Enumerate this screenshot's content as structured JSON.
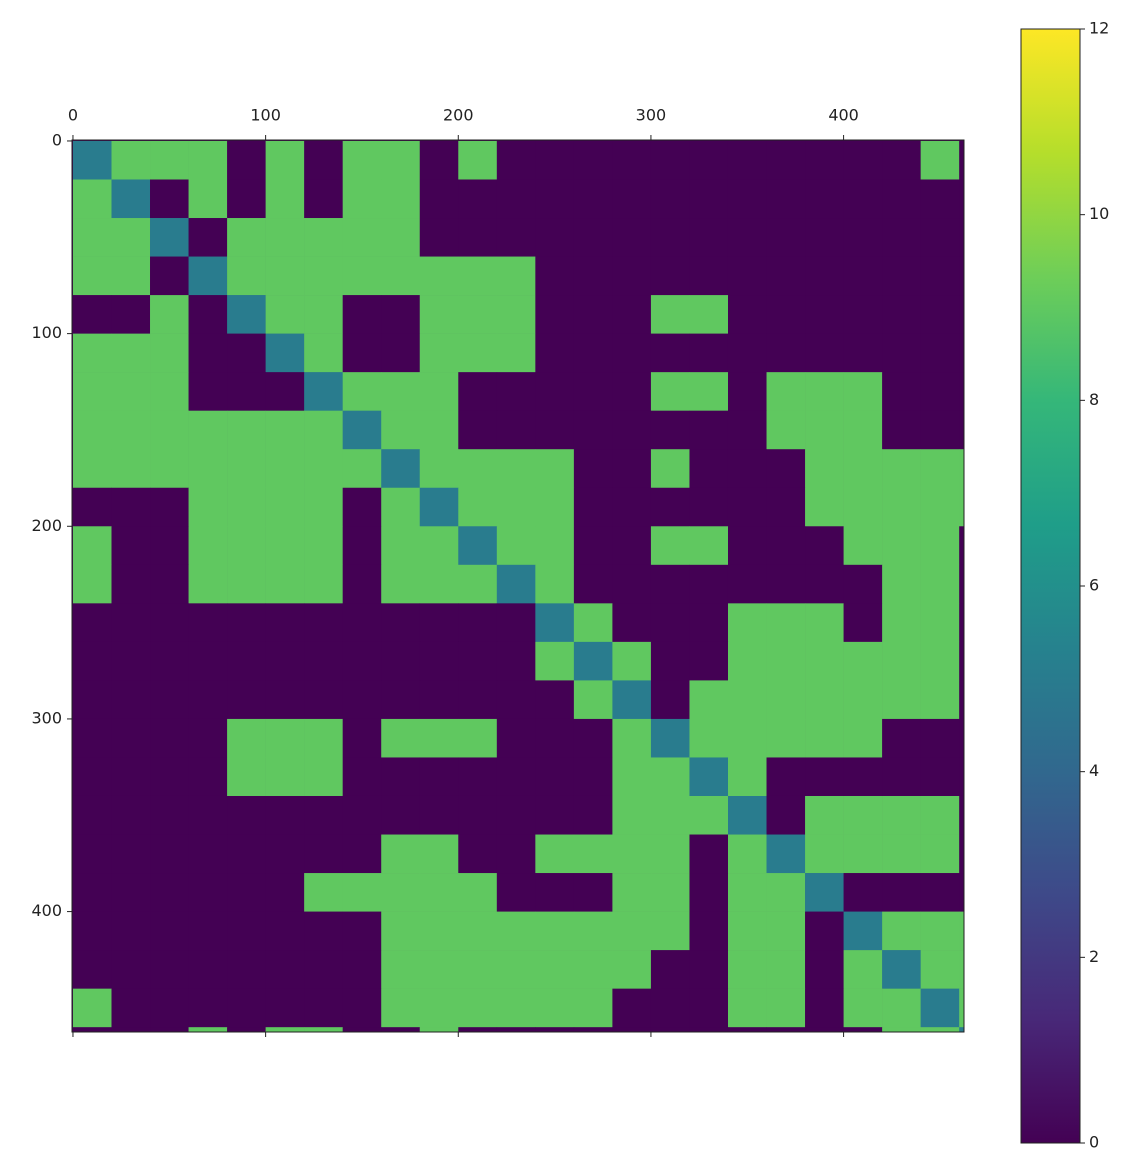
{
  "chart_data": {
    "type": "heatmap",
    "x": [
      10,
      30,
      50,
      70,
      90,
      110,
      130,
      150,
      170,
      190,
      210,
      230,
      250,
      270,
      290,
      310,
      330,
      350,
      370,
      390,
      410,
      430,
      450,
      470
    ],
    "y": [
      10,
      30,
      50,
      70,
      90,
      110,
      130,
      150,
      170,
      190,
      210,
      230,
      250,
      270,
      290,
      310,
      330,
      350,
      370,
      390,
      410,
      430,
      450,
      470
    ],
    "z": [
      [
        5,
        9,
        9,
        9,
        0,
        9,
        0,
        9,
        9,
        0,
        9,
        0,
        0,
        0,
        0,
        0,
        0,
        0,
        0,
        0,
        0,
        0,
        9,
        0
      ],
      [
        9,
        5,
        0,
        9,
        0,
        9,
        0,
        9,
        9,
        0,
        0,
        0,
        0,
        0,
        0,
        0,
        0,
        0,
        0,
        0,
        0,
        0,
        0,
        0
      ],
      [
        9,
        9,
        5,
        0,
        9,
        9,
        9,
        9,
        9,
        0,
        0,
        0,
        0,
        0,
        0,
        0,
        0,
        0,
        0,
        0,
        0,
        0,
        0,
        0
      ],
      [
        9,
        9,
        0,
        5,
        9,
        9,
        9,
        9,
        9,
        9,
        9,
        9,
        0,
        0,
        0,
        0,
        0,
        0,
        0,
        0,
        0,
        0,
        0,
        0
      ],
      [
        0,
        0,
        9,
        0,
        5,
        9,
        9,
        0,
        0,
        9,
        9,
        9,
        0,
        0,
        0,
        9,
        9,
        0,
        0,
        0,
        0,
        0,
        0,
        0
      ],
      [
        9,
        9,
        9,
        0,
        0,
        5,
        9,
        0,
        0,
        9,
        9,
        9,
        0,
        0,
        0,
        0,
        0,
        0,
        0,
        0,
        0,
        0,
        0,
        0
      ],
      [
        9,
        9,
        9,
        0,
        0,
        0,
        5,
        9,
        9,
        9,
        0,
        0,
        0,
        0,
        0,
        9,
        9,
        0,
        9,
        9,
        9,
        0,
        0,
        0
      ],
      [
        9,
        9,
        9,
        9,
        9,
        9,
        9,
        5,
        9,
        9,
        0,
        0,
        0,
        0,
        0,
        0,
        0,
        0,
        9,
        9,
        9,
        0,
        0,
        0
      ],
      [
        9,
        9,
        9,
        9,
        9,
        9,
        9,
        9,
        5,
        9,
        9,
        9,
        9,
        0,
        0,
        9,
        0,
        0,
        0,
        9,
        9,
        9,
        9,
        9
      ],
      [
        0,
        0,
        0,
        9,
        9,
        9,
        9,
        0,
        9,
        5,
        9,
        9,
        9,
        0,
        0,
        0,
        0,
        0,
        0,
        9,
        9,
        9,
        9,
        9
      ],
      [
        9,
        0,
        0,
        9,
        9,
        9,
        9,
        0,
        9,
        9,
        5,
        9,
        9,
        0,
        0,
        9,
        9,
        0,
        0,
        0,
        9,
        9,
        9,
        0
      ],
      [
        9,
        0,
        0,
        9,
        9,
        9,
        9,
        0,
        9,
        9,
        9,
        5,
        9,
        0,
        0,
        0,
        0,
        0,
        0,
        0,
        0,
        9,
        9,
        0
      ],
      [
        0,
        0,
        0,
        0,
        0,
        0,
        0,
        0,
        0,
        0,
        0,
        0,
        5,
        9,
        0,
        0,
        0,
        9,
        9,
        9,
        0,
        9,
        9,
        0
      ],
      [
        0,
        0,
        0,
        0,
        0,
        0,
        0,
        0,
        0,
        0,
        0,
        0,
        9,
        5,
        9,
        0,
        0,
        9,
        9,
        9,
        9,
        9,
        9,
        0
      ],
      [
        0,
        0,
        0,
        0,
        0,
        0,
        0,
        0,
        0,
        0,
        0,
        0,
        0,
        9,
        5,
        0,
        9,
        9,
        9,
        9,
        9,
        9,
        9,
        0
      ],
      [
        0,
        0,
        0,
        0,
        9,
        9,
        9,
        0,
        9,
        9,
        9,
        0,
        0,
        0,
        9,
        5,
        9,
        9,
        9,
        9,
        9,
        0,
        0,
        0
      ],
      [
        0,
        0,
        0,
        0,
        9,
        9,
        9,
        0,
        0,
        0,
        0,
        0,
        0,
        0,
        9,
        9,
        5,
        9,
        0,
        0,
        0,
        0,
        0,
        0
      ],
      [
        0,
        0,
        0,
        0,
        0,
        0,
        0,
        0,
        0,
        0,
        0,
        0,
        0,
        0,
        9,
        9,
        9,
        5,
        0,
        9,
        9,
        9,
        9,
        0
      ],
      [
        0,
        0,
        0,
        0,
        0,
        0,
        0,
        0,
        9,
        9,
        0,
        0,
        9,
        9,
        9,
        9,
        0,
        9,
        5,
        9,
        9,
        9,
        9,
        0
      ],
      [
        0,
        0,
        0,
        0,
        0,
        0,
        9,
        9,
        9,
        9,
        9,
        0,
        0,
        0,
        9,
        9,
        0,
        9,
        9,
        5,
        0,
        0,
        0,
        0
      ],
      [
        0,
        0,
        0,
        0,
        0,
        0,
        0,
        0,
        9,
        9,
        9,
        9,
        9,
        9,
        9,
        9,
        0,
        9,
        9,
        0,
        5,
        9,
        9,
        9
      ],
      [
        0,
        0,
        0,
        0,
        0,
        0,
        0,
        0,
        9,
        9,
        9,
        9,
        9,
        9,
        9,
        0,
        0,
        9,
        9,
        0,
        9,
        5,
        9,
        9
      ],
      [
        9,
        0,
        0,
        0,
        0,
        0,
        0,
        0,
        9,
        9,
        9,
        9,
        9,
        9,
        0,
        0,
        0,
        9,
        9,
        0,
        9,
        9,
        5,
        9
      ],
      [
        0,
        0,
        0,
        9,
        0,
        9,
        9,
        0,
        0,
        9,
        0,
        0,
        0,
        0,
        0,
        0,
        0,
        0,
        0,
        0,
        0,
        9,
        9,
        5
      ]
    ],
    "xlim": [
      -0.5,
      462.5
    ],
    "ylim": [
      -0.5,
      462.5
    ],
    "xticks": [
      0,
      100,
      200,
      300,
      400
    ],
    "yticks": [
      0,
      100,
      200,
      300,
      400
    ],
    "zlim": [
      0,
      12
    ],
    "zticks": [
      0,
      2,
      4,
      6,
      8,
      10,
      12
    ],
    "colormap": [
      "#440154",
      "#482878",
      "#3e4989",
      "#31688e",
      "#26828e",
      "#1f9e89",
      "#35b779",
      "#6ece58",
      "#b5de2b",
      "#fde725"
    ]
  }
}
